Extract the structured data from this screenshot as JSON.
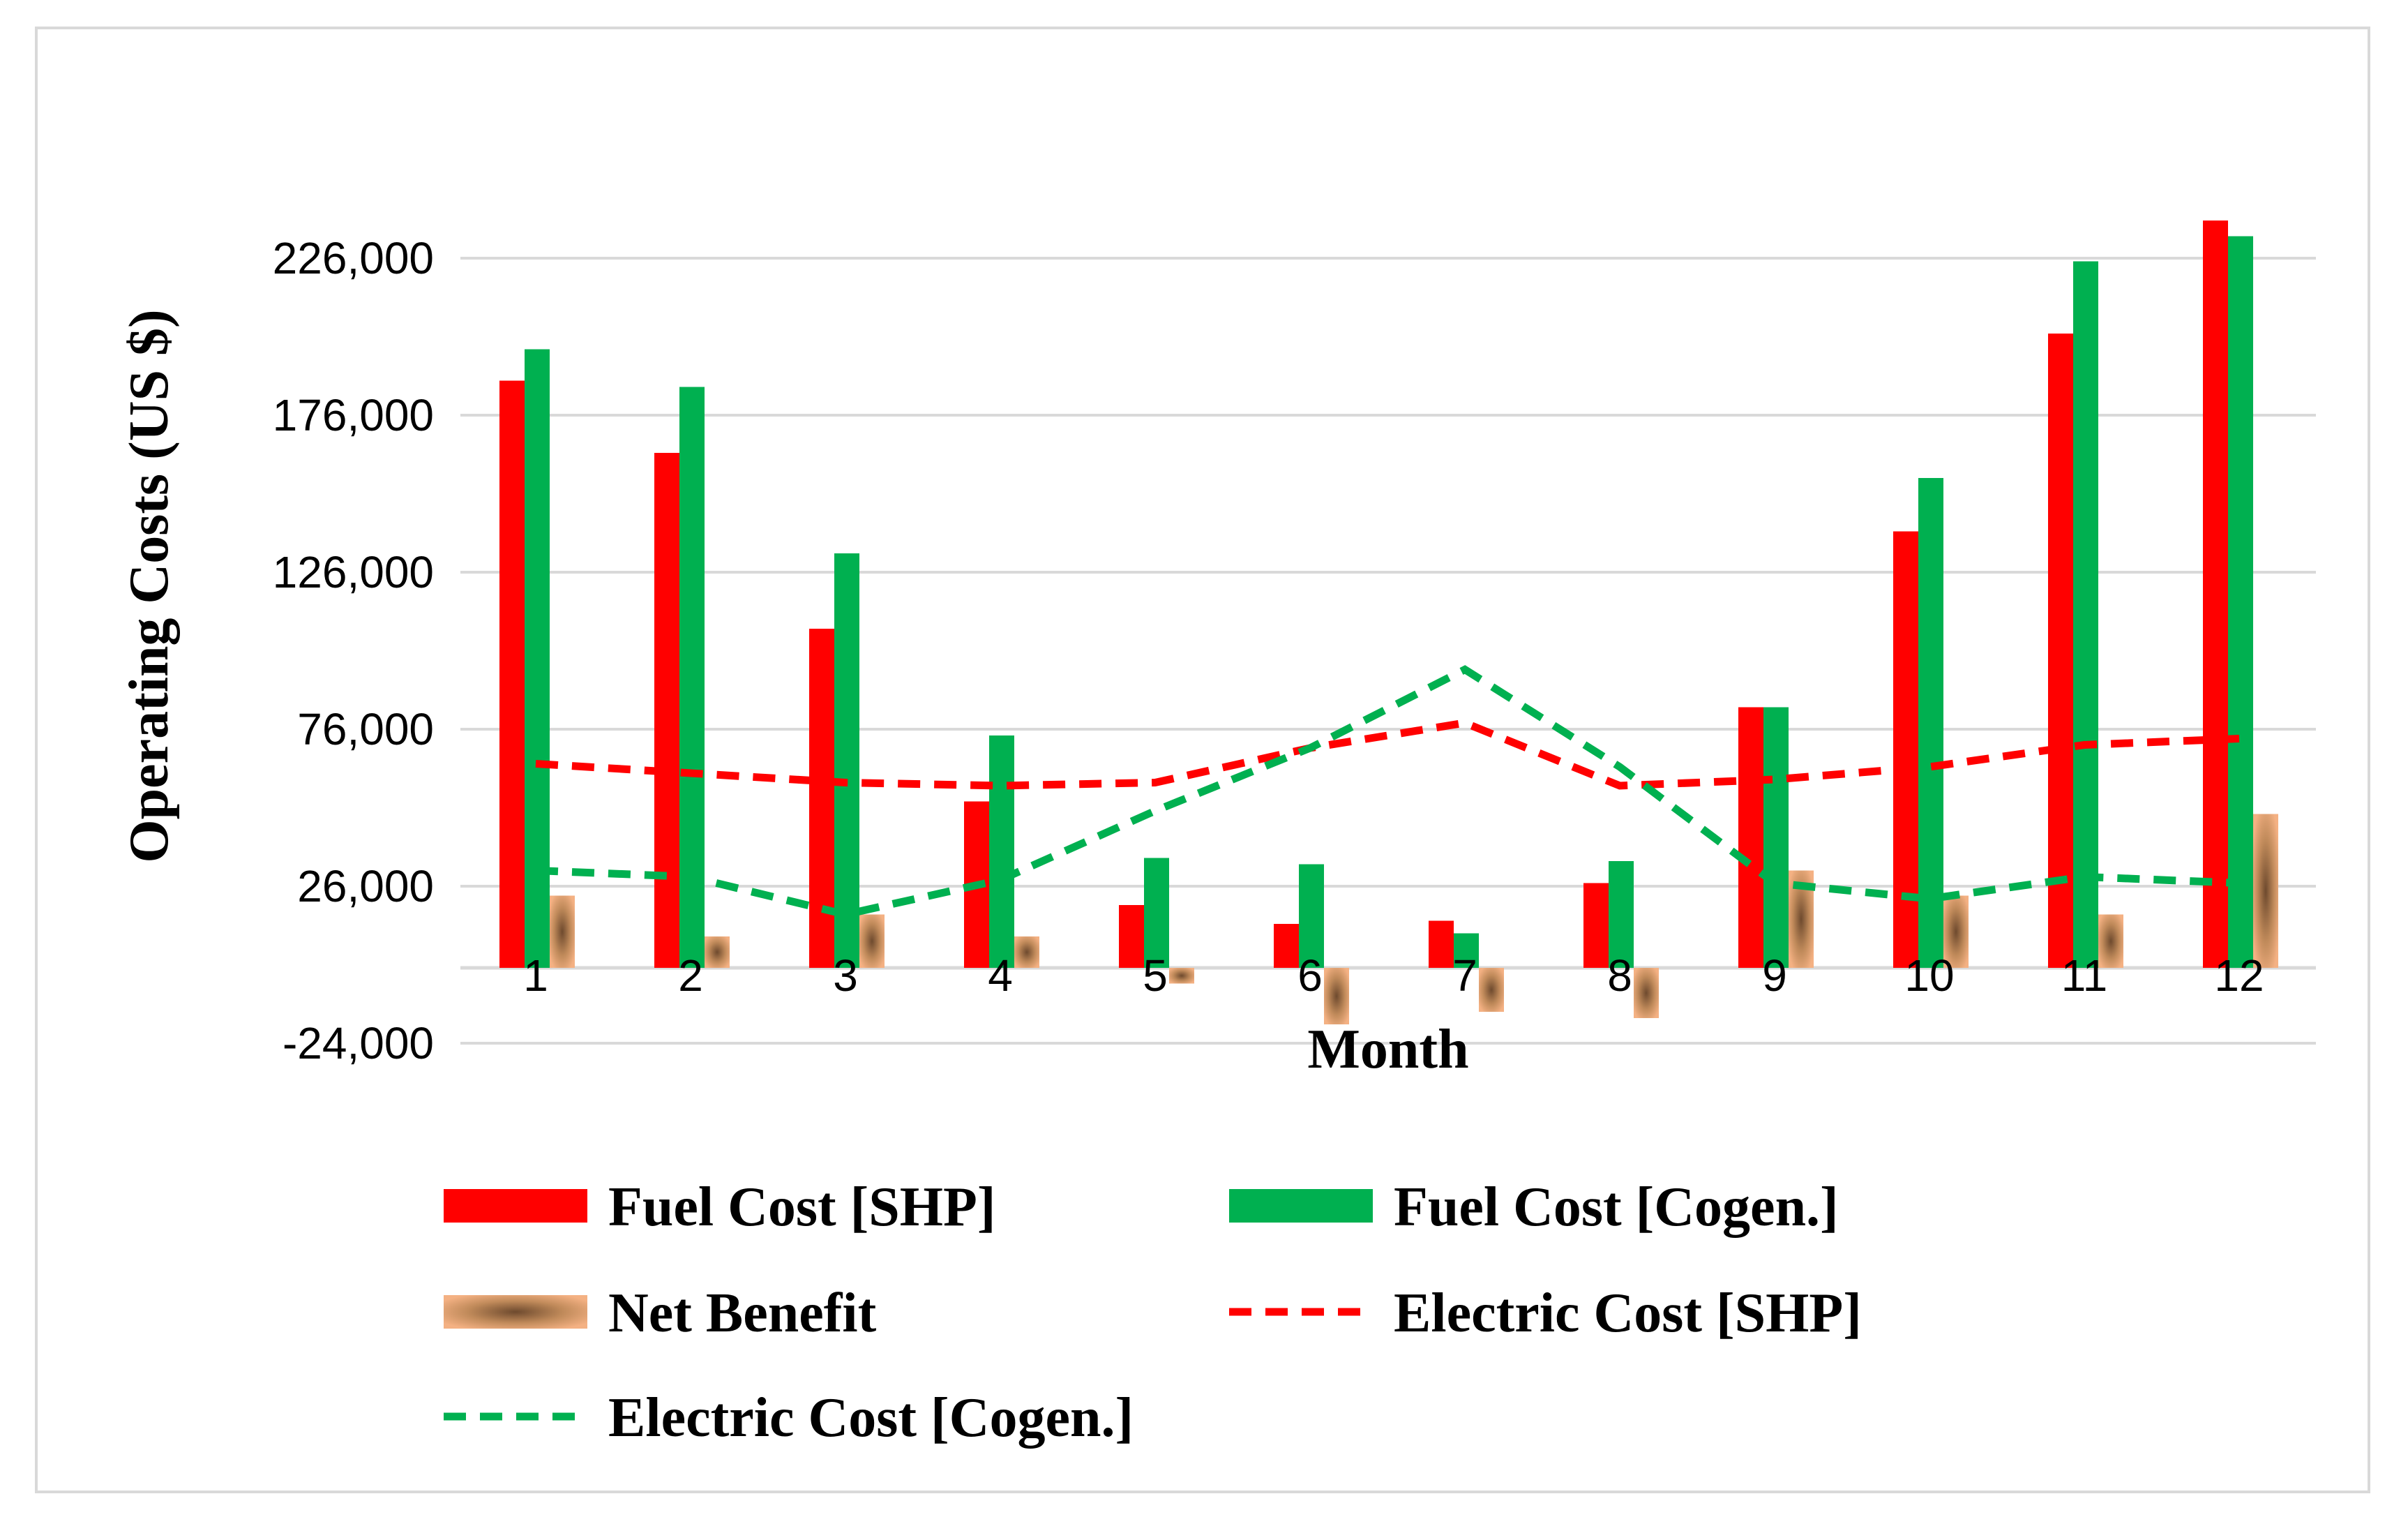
{
  "chart_data": {
    "type": "bar",
    "xlabel": "Month",
    "ylabel": "Operating Costs (US $)",
    "ylim": [
      -24000,
      251000
    ],
    "yticks": [
      -24000,
      26000,
      76000,
      126000,
      176000,
      226000
    ],
    "ytick_labels": [
      "-24,000",
      "26,000",
      "76,000",
      "126,000",
      "176,000",
      "226,000"
    ],
    "categories": [
      "1",
      "2",
      "3",
      "4",
      "5",
      "6",
      "7",
      "8",
      "9",
      "10",
      "11",
      "12"
    ],
    "grid": true,
    "legend_position": "bottom",
    "series": [
      {
        "name": "Fuel Cost [SHP]",
        "kind": "bar",
        "color": "#ff0000",
        "values": [
          187000,
          164000,
          108000,
          53000,
          20000,
          14000,
          15000,
          27000,
          83000,
          139000,
          202000,
          238000
        ]
      },
      {
        "name": "Fuel Cost [Cogen.]",
        "kind": "bar",
        "color": "#00b050",
        "values": [
          197000,
          185000,
          132000,
          74000,
          35000,
          33000,
          11000,
          34000,
          83000,
          156000,
          225000,
          233000
        ]
      },
      {
        "name": "Net Benefit",
        "kind": "bar",
        "color": "#f4b183",
        "values": [
          23000,
          10000,
          17000,
          10000,
          -5000,
          -18000,
          -14000,
          -16000,
          31000,
          23000,
          17000,
          49000
        ]
      },
      {
        "name": "Electric Cost [SHP]",
        "kind": "line",
        "dash": true,
        "color": "#ff0000",
        "values": [
          65000,
          62000,
          59000,
          58000,
          59000,
          70000,
          78000,
          58000,
          60000,
          64000,
          71000,
          73000
        ]
      },
      {
        "name": "Electric Cost [Cogen.]",
        "kind": "line",
        "dash": true,
        "color": "#00b050",
        "values": [
          31000,
          29000,
          17000,
          28000,
          50000,
          70000,
          95000,
          64000,
          27000,
          22000,
          29000,
          27000
        ]
      }
    ]
  }
}
